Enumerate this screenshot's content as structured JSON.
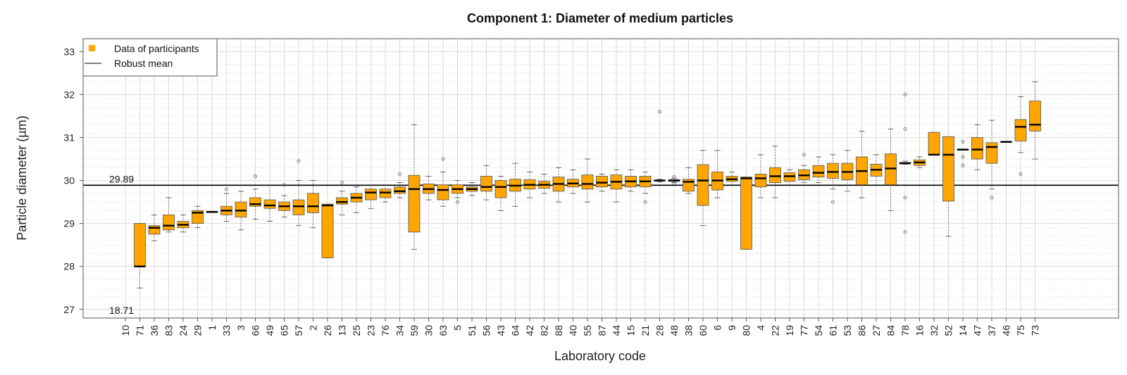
{
  "chart_data": {
    "type": "box",
    "title": "Component 1: Diameter of medium particles",
    "xlabel": "Laboratory code",
    "ylabel": "Particle diameter (µm)",
    "ylim": [
      26.8,
      33.3
    ],
    "yticks": [
      "27",
      "28",
      "29",
      "30",
      "31",
      "32",
      "33"
    ],
    "grid": true,
    "legend": {
      "position": "top-left",
      "entries": [
        {
          "label": "Data of participants",
          "kind": "square",
          "color": "#FFA500"
        },
        {
          "label": "Robust mean",
          "kind": "line",
          "color": "#000000"
        }
      ]
    },
    "robust_mean": 29.89,
    "robust_mean_label": "29.89",
    "offscale_label": "18.71",
    "offscale_lab": "10",
    "box_color": "#FFA500",
    "boxes": [
      {
        "lab": "10",
        "q1": null,
        "median": null,
        "q3": null,
        "whisker_low": null,
        "whisker_high": null,
        "outliers": []
      },
      {
        "lab": "71",
        "q1": 28.0,
        "median": 28.0,
        "q3": 29.0,
        "whisker_low": 27.5,
        "whisker_high": 29.0,
        "outliers": []
      },
      {
        "lab": "36",
        "q1": 28.75,
        "median": 28.9,
        "q3": 28.95,
        "whisker_low": 28.6,
        "whisker_high": 29.2,
        "outliers": []
      },
      {
        "lab": "83",
        "q1": 28.85,
        "median": 28.95,
        "q3": 29.2,
        "whisker_low": 28.8,
        "whisker_high": 29.6,
        "outliers": []
      },
      {
        "lab": "24",
        "q1": 28.9,
        "median": 28.97,
        "q3": 29.05,
        "whisker_low": 28.8,
        "whisker_high": 29.2,
        "outliers": []
      },
      {
        "lab": "29",
        "q1": 29.0,
        "median": 29.25,
        "q3": 29.3,
        "whisker_low": 28.9,
        "whisker_high": 29.4,
        "outliers": []
      },
      {
        "lab": "1",
        "q1": 29.27,
        "median": 29.27,
        "q3": 29.27,
        "whisker_low": 29.27,
        "whisker_high": 29.27,
        "outliers": []
      },
      {
        "lab": "33",
        "q1": 29.2,
        "median": 29.3,
        "q3": 29.4,
        "whisker_low": 29.05,
        "whisker_high": 29.7,
        "outliers": [
          29.8
        ]
      },
      {
        "lab": "3",
        "q1": 29.15,
        "median": 29.3,
        "q3": 29.5,
        "whisker_low": 28.85,
        "whisker_high": 29.75,
        "outliers": []
      },
      {
        "lab": "66",
        "q1": 29.4,
        "median": 29.45,
        "q3": 29.6,
        "whisker_low": 29.1,
        "whisker_high": 29.8,
        "outliers": [
          30.1
        ]
      },
      {
        "lab": "49",
        "q1": 29.35,
        "median": 29.42,
        "q3": 29.55,
        "whisker_low": 29.05,
        "whisker_high": 29.9,
        "outliers": []
      },
      {
        "lab": "65",
        "q1": 29.3,
        "median": 29.4,
        "q3": 29.5,
        "whisker_low": 29.15,
        "whisker_high": 29.65,
        "outliers": [
          29.9
        ]
      },
      {
        "lab": "57",
        "q1": 29.2,
        "median": 29.4,
        "q3": 29.55,
        "whisker_low": 28.95,
        "whisker_high": 30.0,
        "outliers": [
          30.45
        ]
      },
      {
        "lab": "2",
        "q1": 29.25,
        "median": 29.4,
        "q3": 29.7,
        "whisker_low": 28.9,
        "whisker_high": 30.0,
        "outliers": []
      },
      {
        "lab": "26",
        "q1": 28.2,
        "median": 29.42,
        "q3": 29.45,
        "whisker_low": 28.2,
        "whisker_high": 29.45,
        "outliers": []
      },
      {
        "lab": "13",
        "q1": 29.45,
        "median": 29.5,
        "q3": 29.6,
        "whisker_low": 29.2,
        "whisker_high": 29.75,
        "outliers": [
          29.95
        ]
      },
      {
        "lab": "25",
        "q1": 29.5,
        "median": 29.6,
        "q3": 29.7,
        "whisker_low": 29.25,
        "whisker_high": 29.85,
        "outliers": []
      },
      {
        "lab": "23",
        "q1": 29.55,
        "median": 29.72,
        "q3": 29.8,
        "whisker_low": 29.35,
        "whisker_high": 29.9,
        "outliers": []
      },
      {
        "lab": "76",
        "q1": 29.6,
        "median": 29.72,
        "q3": 29.8,
        "whisker_low": 29.5,
        "whisker_high": 29.9,
        "outliers": []
      },
      {
        "lab": "34",
        "q1": 29.7,
        "median": 29.75,
        "q3": 29.85,
        "whisker_low": 29.6,
        "whisker_high": 29.95,
        "outliers": [
          30.15
        ]
      },
      {
        "lab": "59",
        "q1": 28.8,
        "median": 29.8,
        "q3": 30.12,
        "whisker_low": 28.4,
        "whisker_high": 31.3,
        "outliers": []
      },
      {
        "lab": "30",
        "q1": 29.7,
        "median": 29.8,
        "q3": 29.92,
        "whisker_low": 29.55,
        "whisker_high": 30.1,
        "outliers": []
      },
      {
        "lab": "63",
        "q1": 29.55,
        "median": 29.78,
        "q3": 29.9,
        "whisker_low": 29.4,
        "whisker_high": 30.2,
        "outliers": [
          30.5
        ]
      },
      {
        "lab": "5",
        "q1": 29.7,
        "median": 29.8,
        "q3": 29.9,
        "whisker_low": 29.6,
        "whisker_high": 30.0,
        "outliers": [
          29.5
        ]
      },
      {
        "lab": "51",
        "q1": 29.75,
        "median": 29.8,
        "q3": 29.85,
        "whisker_low": 29.65,
        "whisker_high": 29.95,
        "outliers": []
      },
      {
        "lab": "56",
        "q1": 29.75,
        "median": 29.85,
        "q3": 30.1,
        "whisker_low": 29.55,
        "whisker_high": 30.35,
        "outliers": []
      },
      {
        "lab": "43",
        "q1": 29.6,
        "median": 29.85,
        "q3": 30.0,
        "whisker_low": 29.3,
        "whisker_high": 30.1,
        "outliers": []
      },
      {
        "lab": "64",
        "q1": 29.75,
        "median": 29.88,
        "q3": 30.03,
        "whisker_low": 29.4,
        "whisker_high": 30.4,
        "outliers": []
      },
      {
        "lab": "42",
        "q1": 29.8,
        "median": 29.9,
        "q3": 30.02,
        "whisker_low": 29.6,
        "whisker_high": 30.2,
        "outliers": []
      },
      {
        "lab": "82",
        "q1": 29.82,
        "median": 29.9,
        "q3": 29.98,
        "whisker_low": 29.7,
        "whisker_high": 30.15,
        "outliers": []
      },
      {
        "lab": "88",
        "q1": 29.75,
        "median": 29.92,
        "q3": 30.08,
        "whisker_low": 29.5,
        "whisker_high": 30.3,
        "outliers": []
      },
      {
        "lab": "40",
        "q1": 29.85,
        "median": 29.93,
        "q3": 30.03,
        "whisker_low": 29.7,
        "whisker_high": 30.25,
        "outliers": []
      },
      {
        "lab": "55",
        "q1": 29.8,
        "median": 29.92,
        "q3": 30.13,
        "whisker_low": 29.5,
        "whisker_high": 30.5,
        "outliers": []
      },
      {
        "lab": "87",
        "q1": 29.85,
        "median": 29.95,
        "q3": 30.1,
        "whisker_low": 29.75,
        "whisker_high": 30.15,
        "outliers": []
      },
      {
        "lab": "44",
        "q1": 29.8,
        "median": 29.97,
        "q3": 30.13,
        "whisker_low": 29.5,
        "whisker_high": 30.25,
        "outliers": []
      },
      {
        "lab": "15",
        "q1": 29.85,
        "median": 29.98,
        "q3": 30.1,
        "whisker_low": 29.75,
        "whisker_high": 30.25,
        "outliers": []
      },
      {
        "lab": "21",
        "q1": 29.85,
        "median": 29.98,
        "q3": 30.1,
        "whisker_low": 29.7,
        "whisker_high": 30.2,
        "outliers": [
          29.5
        ]
      },
      {
        "lab": "28",
        "q1": 29.99,
        "median": 30.0,
        "q3": 30.01,
        "whisker_low": 29.97,
        "whisker_high": 30.03,
        "outliers": [
          31.6
        ]
      },
      {
        "lab": "48",
        "q1": 29.98,
        "median": 30.0,
        "q3": 30.02,
        "whisker_low": 29.95,
        "whisker_high": 30.05,
        "outliers": [
          30.08,
          29.93
        ]
      },
      {
        "lab": "38",
        "q1": 29.75,
        "median": 29.97,
        "q3": 30.03,
        "whisker_low": 29.7,
        "whisker_high": 30.3,
        "outliers": []
      },
      {
        "lab": "60",
        "q1": 29.42,
        "median": 30.0,
        "q3": 30.37,
        "whisker_low": 28.95,
        "whisker_high": 30.7,
        "outliers": []
      },
      {
        "lab": "6",
        "q1": 29.78,
        "median": 30.0,
        "q3": 30.2,
        "whisker_low": 29.6,
        "whisker_high": 30.7,
        "outliers": []
      },
      {
        "lab": "9",
        "q1": 29.98,
        "median": 30.03,
        "q3": 30.1,
        "whisker_low": 29.9,
        "whisker_high": 30.2,
        "outliers": []
      },
      {
        "lab": "80",
        "q1": 28.4,
        "median": 30.05,
        "q3": 30.08,
        "whisker_low": 28.4,
        "whisker_high": 30.08,
        "outliers": []
      },
      {
        "lab": "4",
        "q1": 29.85,
        "median": 30.05,
        "q3": 30.15,
        "whisker_low": 29.6,
        "whisker_high": 30.6,
        "outliers": []
      },
      {
        "lab": "22",
        "q1": 29.95,
        "median": 30.1,
        "q3": 30.3,
        "whisker_low": 29.6,
        "whisker_high": 30.8,
        "outliers": []
      },
      {
        "lab": "19",
        "q1": 29.98,
        "median": 30.1,
        "q3": 30.18,
        "whisker_low": 29.9,
        "whisker_high": 30.25,
        "outliers": []
      },
      {
        "lab": "77",
        "q1": 30.02,
        "median": 30.12,
        "q3": 30.25,
        "whisker_low": 29.95,
        "whisker_high": 30.35,
        "outliers": [
          30.6
        ]
      },
      {
        "lab": "54",
        "q1": 30.08,
        "median": 30.18,
        "q3": 30.35,
        "whisker_low": 29.95,
        "whisker_high": 30.55,
        "outliers": []
      },
      {
        "lab": "61",
        "q1": 30.05,
        "median": 30.2,
        "q3": 30.4,
        "whisker_low": 29.8,
        "whisker_high": 30.6,
        "outliers": [
          29.5
        ]
      },
      {
        "lab": "53",
        "q1": 30.02,
        "median": 30.2,
        "q3": 30.4,
        "whisker_low": 29.75,
        "whisker_high": 30.7,
        "outliers": []
      },
      {
        "lab": "86",
        "q1": 29.9,
        "median": 30.22,
        "q3": 30.55,
        "whisker_low": 29.6,
        "whisker_high": 31.15,
        "outliers": []
      },
      {
        "lab": "27",
        "q1": 30.1,
        "median": 30.25,
        "q3": 30.38,
        "whisker_low": 29.9,
        "whisker_high": 30.6,
        "outliers": []
      },
      {
        "lab": "84",
        "q1": 29.9,
        "median": 30.28,
        "q3": 30.62,
        "whisker_low": 29.3,
        "whisker_high": 31.2,
        "outliers": []
      },
      {
        "lab": "78",
        "q1": 30.4,
        "median": 30.4,
        "q3": 30.42,
        "whisker_low": 30.38,
        "whisker_high": 30.45,
        "outliers": [
          32.0,
          31.2,
          29.6,
          28.8
        ]
      },
      {
        "lab": "16",
        "q1": 30.35,
        "median": 30.42,
        "q3": 30.48,
        "whisker_low": 30.3,
        "whisker_high": 30.55,
        "outliers": []
      },
      {
        "lab": "32",
        "q1": 30.6,
        "median": 30.6,
        "q3": 31.12,
        "whisker_low": 30.6,
        "whisker_high": 31.12,
        "outliers": []
      },
      {
        "lab": "52",
        "q1": 29.52,
        "median": 30.6,
        "q3": 31.02,
        "whisker_low": 28.7,
        "whisker_high": 31.02,
        "outliers": []
      },
      {
        "lab": "14",
        "q1": 30.72,
        "median": 30.72,
        "q3": 30.72,
        "whisker_low": 30.72,
        "whisker_high": 30.72,
        "outliers": [
          30.9,
          30.55,
          30.35
        ]
      },
      {
        "lab": "47",
        "q1": 30.5,
        "median": 30.72,
        "q3": 31.0,
        "whisker_low": 30.25,
        "whisker_high": 31.3,
        "outliers": []
      },
      {
        "lab": "37",
        "q1": 30.4,
        "median": 30.78,
        "q3": 30.88,
        "whisker_low": 29.8,
        "whisker_high": 31.4,
        "outliers": [
          29.6
        ]
      },
      {
        "lab": "46",
        "q1": 30.9,
        "median": 30.9,
        "q3": 30.9,
        "whisker_low": 30.9,
        "whisker_high": 30.9,
        "outliers": []
      },
      {
        "lab": "75",
        "q1": 30.92,
        "median": 31.25,
        "q3": 31.42,
        "whisker_low": 30.65,
        "whisker_high": 31.95,
        "outliers": [
          30.15
        ]
      },
      {
        "lab": "73",
        "q1": 31.15,
        "median": 31.3,
        "q3": 31.85,
        "whisker_low": 30.5,
        "whisker_high": 32.3,
        "outliers": []
      }
    ]
  }
}
